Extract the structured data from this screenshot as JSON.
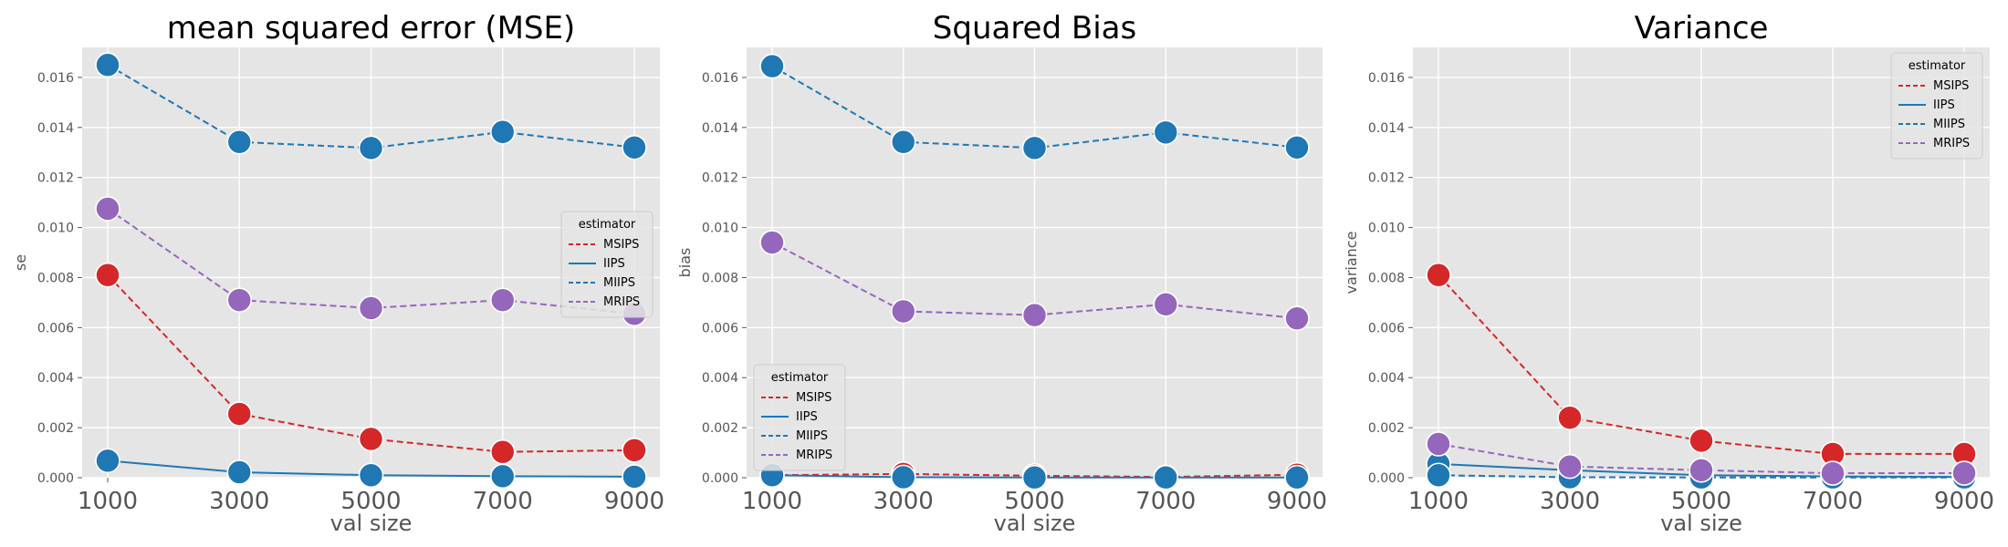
{
  "chart_data": [
    {
      "type": "line",
      "title": "mean squared error (MSE)",
      "xlabel": "val size",
      "ylabel": "se",
      "x": [
        1000,
        3000,
        5000,
        7000,
        9000
      ],
      "ylim": [
        0,
        0.0172
      ],
      "yticks": [
        "0.000",
        "0.002",
        "0.004",
        "0.006",
        "0.008",
        "0.010",
        "0.012",
        "0.014",
        "0.016"
      ],
      "legend": {
        "title": "estimator",
        "placement": "center-right"
      },
      "series": [
        {
          "name": "MSIPS",
          "values": [
            0.0081,
            0.00255,
            0.00155,
            0.00103,
            0.0011
          ],
          "color": "#d62728",
          "dash": "dashed",
          "markers": true
        },
        {
          "name": "IIPS",
          "values": [
            0.00068,
            0.00022,
            0.0001,
            6e-05,
            4e-05
          ],
          "color": "#1f77b4",
          "dash": "solid",
          "markers": true
        },
        {
          "name": "MIIPS",
          "values": [
            0.0165,
            0.01342,
            0.01318,
            0.01382,
            0.0132
          ],
          "color": "#1f77b4",
          "dash": "dashed",
          "markers": true
        },
        {
          "name": "MRIPS",
          "values": [
            0.01075,
            0.0071,
            0.00678,
            0.0071,
            0.00655
          ],
          "color": "#9467bd",
          "dash": "dashed",
          "markers": true
        }
      ]
    },
    {
      "type": "line",
      "title": "Squared Bias",
      "xlabel": "val size",
      "ylabel": "bias",
      "x": [
        1000,
        3000,
        5000,
        7000,
        9000
      ],
      "ylim": [
        0,
        0.0172
      ],
      "yticks": [
        "0.000",
        "0.002",
        "0.004",
        "0.006",
        "0.008",
        "0.010",
        "0.012",
        "0.014",
        "0.016"
      ],
      "legend": {
        "title": "estimator",
        "placement": "lower-left"
      },
      "series": [
        {
          "name": "MSIPS",
          "values": [
            0.0001,
            0.00015,
            8e-05,
            3e-05,
            0.00012
          ],
          "color": "#d62728",
          "dash": "dashed",
          "markers": true
        },
        {
          "name": "IIPS",
          "values": [
            0.0001,
            2e-05,
            1e-05,
            1e-05,
            1e-05
          ],
          "color": "#1f77b4",
          "dash": "solid",
          "markers": true
        },
        {
          "name": "MIIPS",
          "values": [
            0.01645,
            0.01342,
            0.01318,
            0.0138,
            0.0132
          ],
          "color": "#1f77b4",
          "dash": "dashed",
          "markers": true
        },
        {
          "name": "MRIPS",
          "values": [
            0.0094,
            0.00665,
            0.0065,
            0.00693,
            0.00637
          ],
          "color": "#9467bd",
          "dash": "dashed",
          "markers": true
        }
      ]
    },
    {
      "type": "line",
      "title": "Variance",
      "xlabel": "val size",
      "ylabel": "variance",
      "x": [
        1000,
        3000,
        5000,
        7000,
        9000
      ],
      "ylim": [
        0,
        0.0172
      ],
      "yticks": [
        "0.000",
        "0.002",
        "0.004",
        "0.006",
        "0.008",
        "0.010",
        "0.012",
        "0.014",
        "0.016"
      ],
      "legend": {
        "title": "estimator",
        "placement": "upper-right"
      },
      "series": [
        {
          "name": "MSIPS",
          "values": [
            0.0081,
            0.0024,
            0.00148,
            0.00095,
            0.00095
          ],
          "color": "#d62728",
          "dash": "dashed",
          "markers": true
        },
        {
          "name": "IIPS",
          "values": [
            0.00055,
            0.0003,
            0.0001,
            5e-05,
            3e-05
          ],
          "color": "#1f77b4",
          "dash": "solid",
          "markers": true
        },
        {
          "name": "MIIPS",
          "values": [
            0.0001,
            2e-05,
            1e-05,
            1e-05,
            1e-05
          ],
          "color": "#1f77b4",
          "dash": "dashed",
          "markers": true
        },
        {
          "name": "MRIPS",
          "values": [
            0.00135,
            0.00045,
            0.0003,
            0.00018,
            0.00018
          ],
          "color": "#9467bd",
          "dash": "dashed",
          "markers": true
        }
      ]
    }
  ],
  "style": {
    "panel_background": "#e5e5e5",
    "grid_color": "#ffffff",
    "grid": true
  }
}
